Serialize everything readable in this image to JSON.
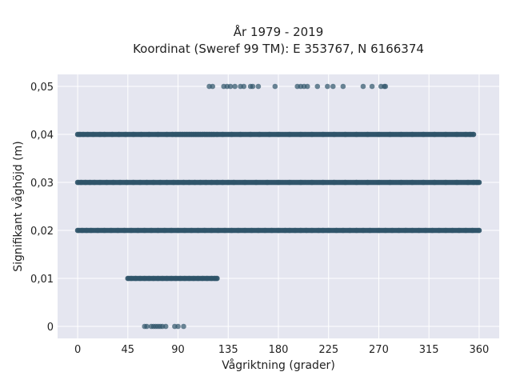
{
  "chart_data": {
    "type": "scatter",
    "title": "År 1979 - 2019",
    "subtitle": "Koordinat (Sweref 99 TM): E 353767, N 6166374",
    "xlabel": "Vågriktning (grader)",
    "ylabel": "Signifikant våghöjd (m)",
    "xlim": [
      -18,
      378
    ],
    "ylim": [
      -0.0025,
      0.0525
    ],
    "xticks": [
      0,
      45,
      90,
      135,
      180,
      225,
      270,
      315,
      360
    ],
    "xtick_labels": [
      "0",
      "45",
      "90",
      "135",
      "180",
      "225",
      "270",
      "315",
      "360"
    ],
    "yticks": [
      0,
      0.01,
      0.02,
      0.03,
      0.04,
      0.05
    ],
    "ytick_labels": [
      "0",
      "0,01",
      "0,02",
      "0,03",
      "0,04",
      "0,05"
    ],
    "grid": true,
    "colors": {
      "marker": "#2f5469",
      "plot_bg": "#e5e6f0",
      "grid": "#ffffff"
    },
    "series": [
      {
        "y": 0.05,
        "x": [
          118,
          121,
          131,
          134,
          137,
          141,
          146,
          149,
          155,
          157,
          162,
          177,
          197,
          200,
          203,
          206,
          215,
          224,
          229,
          238,
          256,
          264,
          272,
          275,
          276
        ]
      },
      {
        "y": 0.04,
        "x_range": [
          0,
          355
        ],
        "step": 1,
        "x": [
          0,
          2,
          5,
          9,
          14,
          20,
          24,
          31,
          37,
          43,
          50,
          57,
          64,
          72,
          80,
          85,
          88,
          90,
          92,
          94,
          96,
          98,
          100,
          102,
          104,
          106,
          108,
          110,
          112,
          114,
          116,
          118,
          120,
          122,
          125,
          130,
          138,
          146,
          155,
          163,
          172,
          180,
          190,
          200,
          210,
          220,
          230,
          240,
          250,
          260,
          270,
          280,
          290,
          300,
          310,
          320,
          330,
          340,
          348,
          352,
          355
        ]
      },
      {
        "y": 0.03,
        "x_range": [
          0,
          360
        ],
        "step": 1,
        "x": [
          0,
          3,
          7,
          11,
          15,
          20,
          26,
          32,
          38,
          44,
          50,
          56,
          62,
          68,
          74,
          80,
          86,
          90,
          95,
          100,
          105,
          110,
          115,
          120,
          125,
          130,
          135,
          140,
          150,
          160,
          170,
          180,
          190,
          200,
          210,
          220,
          230,
          240,
          250,
          260,
          270,
          280,
          290,
          300,
          310,
          320,
          330,
          340,
          350,
          355,
          358,
          360
        ]
      },
      {
        "y": 0.02,
        "x_range": [
          0,
          360
        ],
        "step": 1,
        "x": [
          0,
          4,
          8,
          12,
          18,
          24,
          30,
          36,
          42,
          48,
          54,
          60,
          66,
          72,
          78,
          84,
          90,
          96,
          102,
          108,
          114,
          120,
          126,
          132,
          138,
          144,
          150,
          156,
          162,
          168,
          174,
          180,
          186,
          190,
          195,
          200,
          205,
          210,
          216,
          220,
          225,
          232,
          238,
          244,
          250,
          256,
          262,
          270,
          276,
          282,
          288,
          294,
          300,
          306,
          312,
          318,
          324,
          330,
          336,
          342,
          348,
          354,
          360
        ]
      },
      {
        "y": 0.01,
        "x_range": [
          45,
          125
        ],
        "step": 1,
        "x": [
          45,
          48,
          52,
          56,
          60,
          64,
          68,
          72,
          76,
          80,
          84,
          88,
          92,
          96,
          100,
          104,
          108,
          112,
          116,
          120,
          123,
          125
        ]
      },
      {
        "y": 0,
        "x": [
          60,
          62,
          66,
          68,
          70,
          72,
          74,
          76,
          79,
          87,
          90,
          95
        ]
      }
    ]
  }
}
